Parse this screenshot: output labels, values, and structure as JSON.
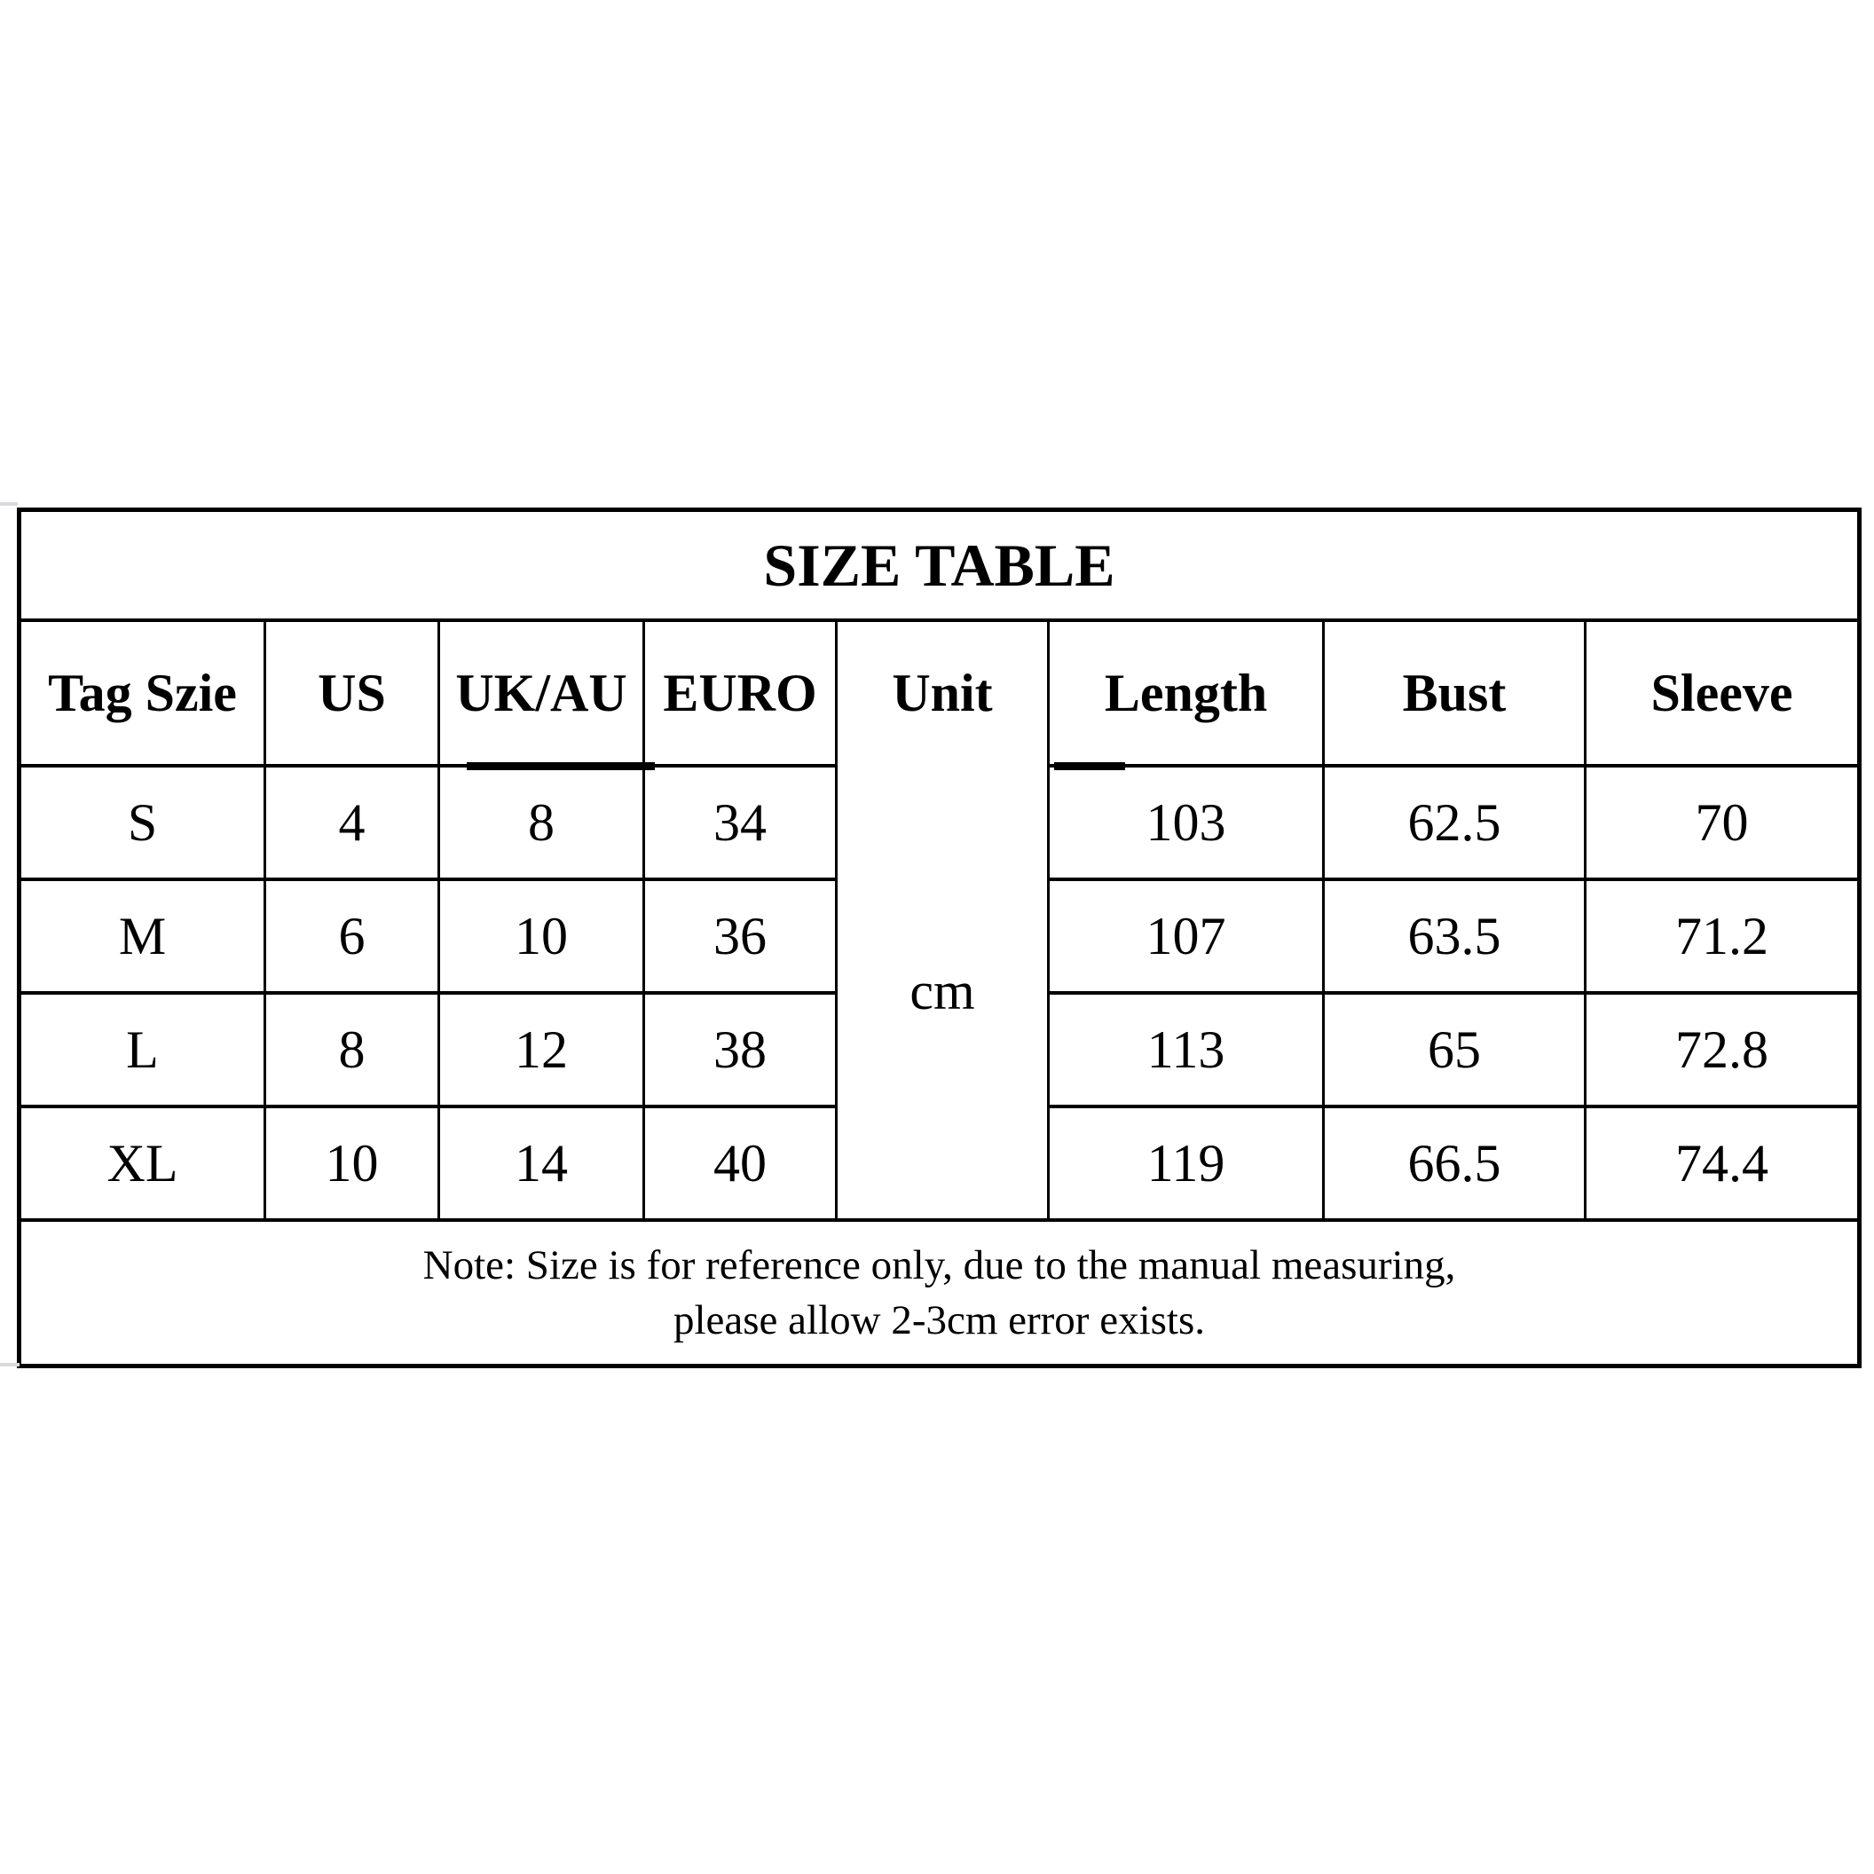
{
  "chart_data": {
    "type": "table",
    "title": "SIZE TABLE",
    "columns": [
      "Tag Szie",
      "US",
      "UK/AU",
      "EURO",
      "Unit",
      "Length",
      "Bust",
      "Sleeve"
    ],
    "unit_value": "cm",
    "rows": [
      {
        "tag_size": "S",
        "us": "4",
        "uk_au": "8",
        "euro": "34",
        "length": "103",
        "bust": "62.5",
        "sleeve": "70"
      },
      {
        "tag_size": "M",
        "us": "6",
        "uk_au": "10",
        "euro": "36",
        "length": "107",
        "bust": "63.5",
        "sleeve": "71.2"
      },
      {
        "tag_size": "L",
        "us": "8",
        "uk_au": "12",
        "euro": "38",
        "length": "113",
        "bust": "65",
        "sleeve": "72.8"
      },
      {
        "tag_size": "XL",
        "us": "10",
        "uk_au": "14",
        "euro": "40",
        "length": "119",
        "bust": "66.5",
        "sleeve": "74.4"
      }
    ],
    "note_line1": "Note: Size is for reference only, due to the manual measuring,",
    "note_line2": "please allow 2-3cm error exists.",
    "layout_hints": "Unit column cell is merged vertically across all four data rows"
  },
  "colors": {
    "border": "#000000",
    "background": "#ffffff",
    "text": "#000000"
  }
}
